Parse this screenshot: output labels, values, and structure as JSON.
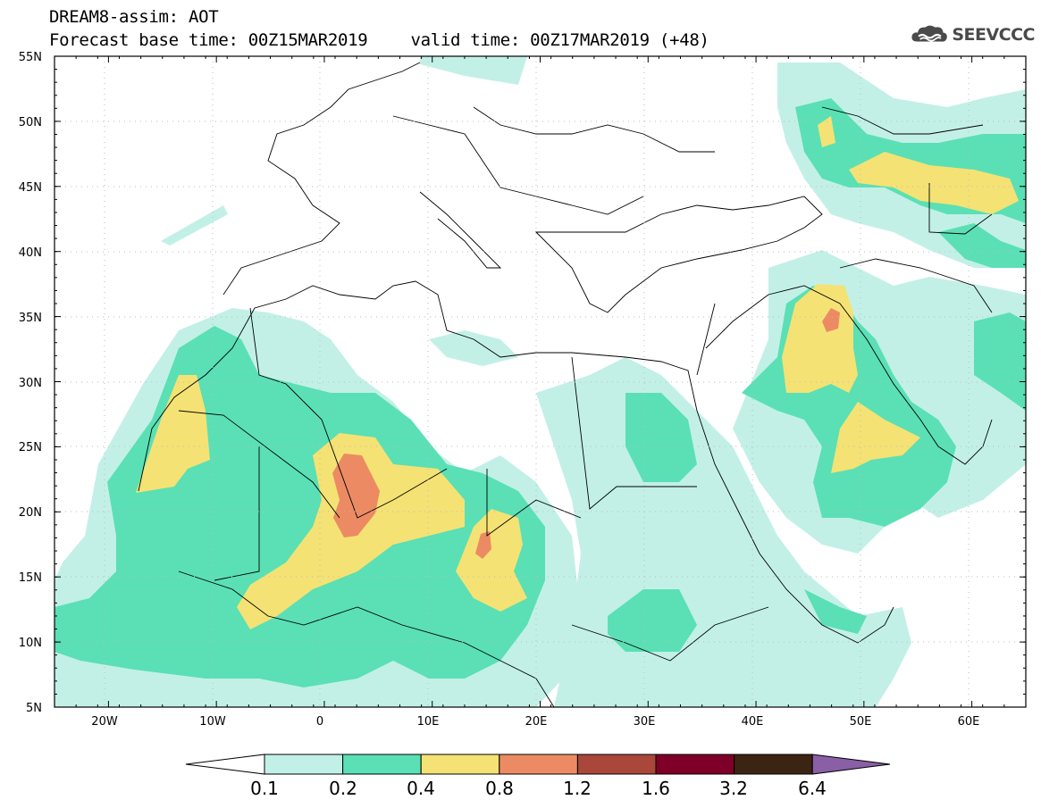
{
  "header": {
    "title_line1": "DREAM8-assim: AOT",
    "base_time": "Forecast base time: 00Z15MAR2019",
    "valid_time": "valid time: 00Z17MAR2019 (+48)",
    "logo_text": "SEEVCCC",
    "logo_icon": "cloud-icon"
  },
  "map": {
    "lon_range": [
      -25,
      65
    ],
    "lat_range": [
      5,
      55
    ],
    "x_ticks": [
      {
        "lon": -20,
        "label": "20W"
      },
      {
        "lon": -10,
        "label": "10W"
      },
      {
        "lon": 0,
        "label": "0"
      },
      {
        "lon": 10,
        "label": "10E"
      },
      {
        "lon": 20,
        "label": "20E"
      },
      {
        "lon": 30,
        "label": "30E"
      },
      {
        "lon": 40,
        "label": "40E"
      },
      {
        "lon": 50,
        "label": "50E"
      },
      {
        "lon": 60,
        "label": "60E"
      }
    ],
    "y_ticks": [
      {
        "lat": 55,
        "label": "55N"
      },
      {
        "lat": 50,
        "label": "50N"
      },
      {
        "lat": 45,
        "label": "45N"
      },
      {
        "lat": 40,
        "label": "40N"
      },
      {
        "lat": 35,
        "label": "35N"
      },
      {
        "lat": 30,
        "label": "30N"
      },
      {
        "lat": 25,
        "label": "25N"
      },
      {
        "lat": 20,
        "label": "20N"
      },
      {
        "lat": 15,
        "label": "15N"
      },
      {
        "lat": 10,
        "label": "10N"
      },
      {
        "lat": 5,
        "label": "5N"
      }
    ],
    "grid": "dotted",
    "field": "AOT"
  },
  "colorbar": {
    "levels": [
      "0.1",
      "0.2",
      "0.4",
      "0.8",
      "1.2",
      "1.6",
      "3.2",
      "6.4"
    ],
    "colors": [
      "#ffffff",
      "#c2f0e7",
      "#5ae0b4",
      "#f5e274",
      "#ec8b63",
      "#a8473a",
      "#7e0028",
      "#3c2412",
      "#8a5fa6"
    ]
  }
}
